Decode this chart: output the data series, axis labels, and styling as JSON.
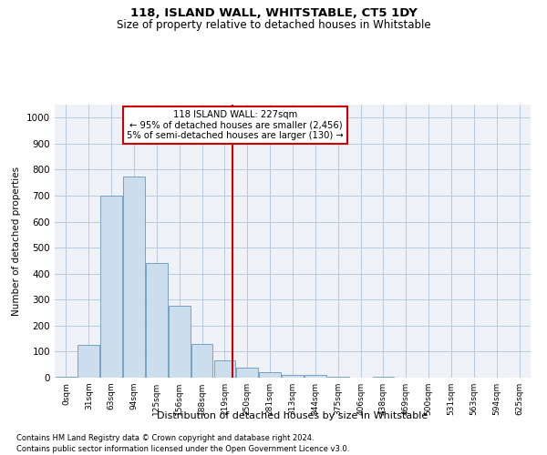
{
  "title": "118, ISLAND WALL, WHITSTABLE, CT5 1DY",
  "subtitle": "Size of property relative to detached houses in Whitstable",
  "xlabel": "Distribution of detached houses by size in Whitstable",
  "ylabel": "Number of detached properties",
  "bar_labels": [
    "0sqm",
    "31sqm",
    "63sqm",
    "94sqm",
    "125sqm",
    "156sqm",
    "188sqm",
    "219sqm",
    "250sqm",
    "281sqm",
    "313sqm",
    "344sqm",
    "375sqm",
    "406sqm",
    "438sqm",
    "469sqm",
    "500sqm",
    "531sqm",
    "563sqm",
    "594sqm",
    "625sqm"
  ],
  "bar_values": [
    5,
    125,
    700,
    775,
    440,
    275,
    130,
    65,
    38,
    22,
    12,
    12,
    5,
    0,
    5,
    0,
    0,
    0,
    0,
    0,
    0
  ],
  "bar_color": "#ccdded",
  "bar_edge_color": "#6699bb",
  "property_line_x": 7.35,
  "property_line_color": "#cc0000",
  "annotation_box_text": "118 ISLAND WALL: 227sqm\n← 95% of detached houses are smaller (2,456)\n5% of semi-detached houses are larger (130) →",
  "annotation_box_color": "#cc0000",
  "ylim": [
    0,
    1050
  ],
  "yticks": [
    0,
    100,
    200,
    300,
    400,
    500,
    600,
    700,
    800,
    900,
    1000
  ],
  "footer1": "Contains HM Land Registry data © Crown copyright and database right 2024.",
  "footer2": "Contains public sector information licensed under the Open Government Licence v3.0.",
  "bg_color": "#eef2f7",
  "grid_color": "#b0c4d8"
}
